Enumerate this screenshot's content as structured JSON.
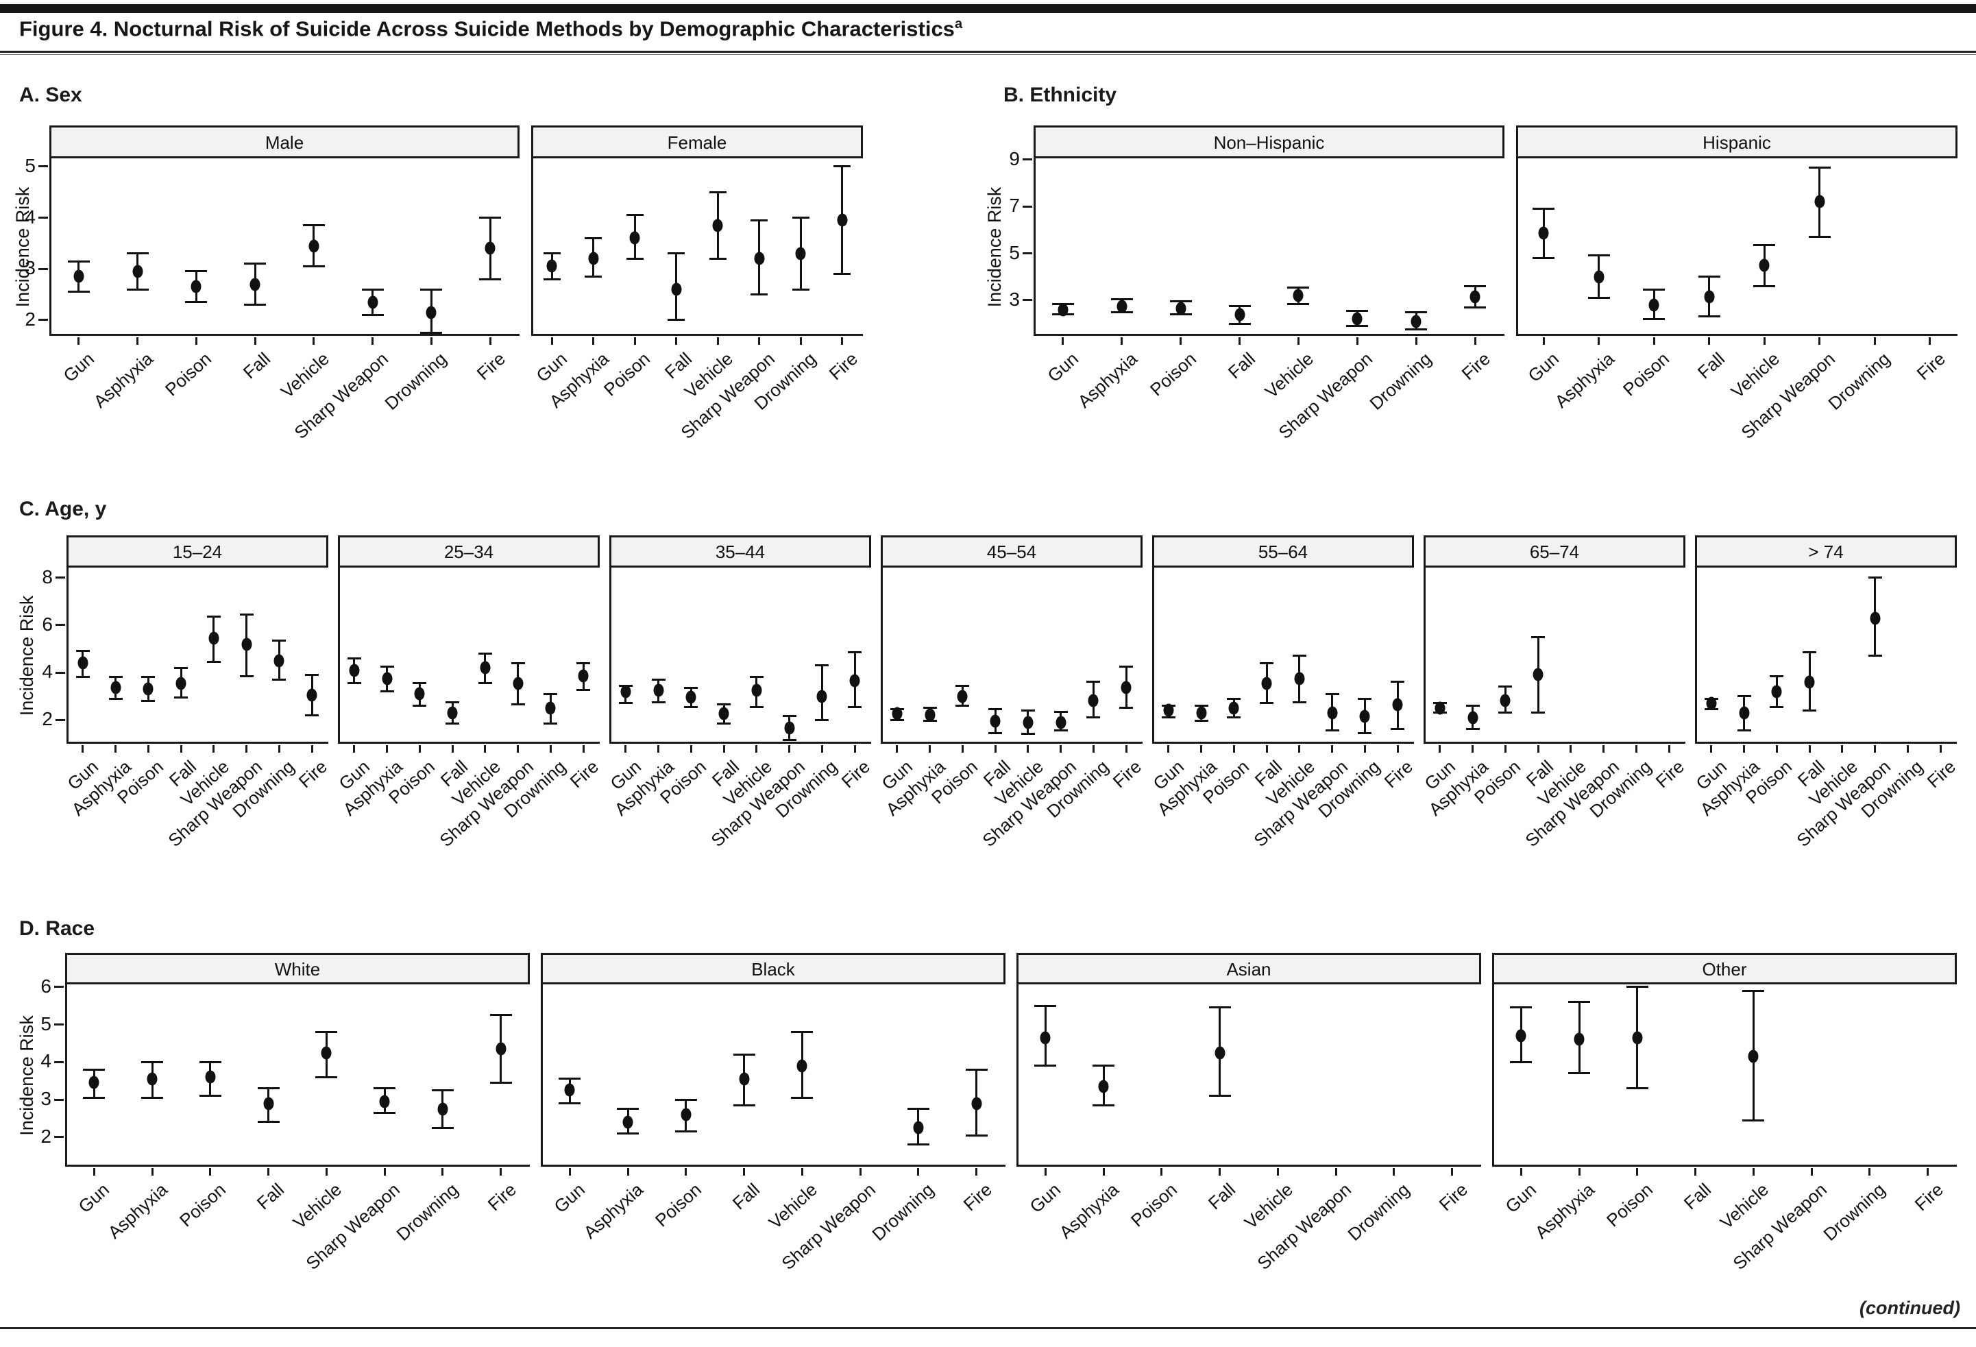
{
  "header": {
    "title": "Figure 4. Nocturnal Risk of Suicide Across Suicide Methods by Demographic Characteristics",
    "title_sup": "a"
  },
  "footer": {
    "continued": "(continued)"
  },
  "colors": {
    "point": "#111111",
    "panel_header_fill": "#f2f2f2",
    "border": "#1a1a1a"
  },
  "chart_data": {
    "type": "scatter",
    "point_style": "dot-with-95ci-error-bars",
    "ylabel": "Incidence Risk",
    "categories": [
      "Gun",
      "Asphyxia",
      "Poison",
      "Fall",
      "Vehicle",
      "Sharp Weapon",
      "Drowning",
      "Fire"
    ],
    "rows": [
      {
        "id": "A",
        "label": "A. Sex",
        "ylabel": "Incidence Risk",
        "yticks": [
          5,
          4,
          3,
          2
        ],
        "ylim_top": 5.16,
        "ylim_bottom": 1.69,
        "panels": [
          {
            "title": "Male",
            "values": [
              2.85,
              2.95,
              2.65,
              2.7,
              3.45,
              2.35,
              2.15,
              3.4
            ],
            "ci": [
              [
                2.55,
                3.15
              ],
              [
                2.6,
                3.3
              ],
              [
                2.35,
                2.95
              ],
              [
                2.3,
                3.1
              ],
              [
                3.05,
                3.85
              ],
              [
                2.1,
                2.6
              ],
              [
                1.75,
                2.6
              ],
              [
                2.8,
                4.0
              ]
            ]
          },
          {
            "title": "Female",
            "values": [
              3.05,
              3.2,
              3.6,
              2.6,
              3.85,
              3.2,
              3.3,
              3.95
            ],
            "ci": [
              [
                2.8,
                3.3
              ],
              [
                2.85,
                3.6
              ],
              [
                3.2,
                4.05
              ],
              [
                2.0,
                3.3
              ],
              [
                3.2,
                4.5
              ],
              [
                2.5,
                3.95
              ],
              [
                2.6,
                4.0
              ],
              [
                2.9,
                5.0
              ]
            ]
          }
        ]
      },
      {
        "id": "B",
        "label": "B. Ethnicity",
        "ylabel": "Incidence Risk",
        "yticks": [
          9,
          7,
          5,
          3
        ],
        "ylim_top": 9.05,
        "ylim_bottom": 1.48,
        "panels": [
          {
            "title": "Non–Hispanic",
            "values": [
              2.6,
              2.75,
              2.65,
              2.4,
              3.2,
              2.2,
              2.1,
              3.15
            ],
            "ci": [
              [
                2.4,
                2.85
              ],
              [
                2.5,
                3.05
              ],
              [
                2.4,
                2.95
              ],
              [
                2.0,
                2.75
              ],
              [
                2.85,
                3.55
              ],
              [
                1.9,
                2.55
              ],
              [
                1.75,
                2.5
              ],
              [
                2.7,
                3.6
              ]
            ]
          },
          {
            "title": "Hispanic",
            "values": [
              5.85,
              4.0,
              2.8,
              3.15,
              4.5,
              7.2,
              null,
              null
            ],
            "ci": [
              [
                4.8,
                6.9
              ],
              [
                3.1,
                4.9
              ],
              [
                2.2,
                3.45
              ],
              [
                2.3,
                4.0
              ],
              [
                3.6,
                5.35
              ],
              [
                5.7,
                8.65
              ],
              null,
              null
            ]
          }
        ]
      },
      {
        "id": "C",
        "label": "C. Age, y",
        "ylabel": "Incidence Risk",
        "yticks": [
          8,
          6,
          4,
          2
        ],
        "ylim_top": 8.43,
        "ylim_bottom": 0.99,
        "panels": [
          {
            "title": "15–24",
            "values": [
              4.4,
              3.35,
              3.3,
              3.55,
              5.45,
              5.2,
              4.5,
              3.05
            ],
            "ci": [
              [
                3.8,
                4.9
              ],
              [
                2.9,
                3.8
              ],
              [
                2.8,
                3.8
              ],
              [
                2.95,
                4.2
              ],
              [
                4.45,
                6.35
              ],
              [
                3.85,
                6.45
              ],
              [
                3.7,
                5.35
              ],
              [
                2.2,
                3.9
              ]
            ]
          },
          {
            "title": "25–34",
            "values": [
              4.1,
              3.75,
              3.1,
              2.3,
              4.2,
              3.55,
              2.5,
              3.85
            ],
            "ci": [
              [
                3.55,
                4.6
              ],
              [
                3.2,
                4.25
              ],
              [
                2.6,
                3.55
              ],
              [
                1.85,
                2.75
              ],
              [
                3.55,
                4.8
              ],
              [
                2.65,
                4.4
              ],
              [
                1.85,
                3.1
              ],
              [
                3.25,
                4.4
              ]
            ]
          },
          {
            "title": "35–44",
            "values": [
              3.2,
              3.25,
              2.95,
              2.25,
              3.25,
              1.65,
              3.0,
              3.65
            ],
            "ci": [
              [
                2.7,
                3.45
              ],
              [
                2.75,
                3.7
              ],
              [
                2.55,
                3.35
              ],
              [
                1.85,
                2.65
              ],
              [
                2.55,
                3.8
              ],
              [
                1.15,
                2.15
              ],
              [
                2.0,
                4.3
              ],
              [
                2.55,
                4.85
              ]
            ]
          },
          {
            "title": "45–54",
            "values": [
              2.25,
              2.2,
              3.0,
              1.95,
              1.9,
              1.9,
              2.8,
              3.35
            ],
            "ci": [
              [
                2.0,
                2.45
              ],
              [
                1.95,
                2.5
              ],
              [
                2.6,
                3.45
              ],
              [
                1.45,
                2.45
              ],
              [
                1.4,
                2.4
              ],
              [
                1.55,
                2.35
              ],
              [
                2.1,
                3.6
              ],
              [
                2.5,
                4.25
              ]
            ]
          },
          {
            "title": "55–64",
            "values": [
              2.4,
              2.3,
              2.5,
              3.55,
              3.75,
              2.3,
              2.15,
              2.65
            ],
            "ci": [
              [
                2.1,
                2.6
              ],
              [
                1.95,
                2.6
              ],
              [
                2.1,
                2.9
              ],
              [
                2.7,
                4.4
              ],
              [
                2.75,
                4.7
              ],
              [
                1.55,
                3.1
              ],
              [
                1.45,
                2.9
              ],
              [
                1.6,
                3.6
              ]
            ]
          },
          {
            "title": "65–74",
            "values": [
              2.5,
              2.1,
              2.8,
              3.9,
              null,
              null,
              null,
              null
            ],
            "ci": [
              [
                2.3,
                2.7
              ],
              [
                1.6,
                2.6
              ],
              [
                2.3,
                3.4
              ],
              [
                2.3,
                5.5
              ],
              null,
              null,
              null,
              null
            ]
          },
          {
            "title": "> 74",
            "values": [
              2.7,
              2.3,
              3.2,
              3.6,
              null,
              6.3,
              null,
              null
            ],
            "ci": [
              [
                2.45,
                2.9
              ],
              [
                1.55,
                3.0
              ],
              [
                2.55,
                3.85
              ],
              [
                2.4,
                4.85
              ],
              null,
              [
                4.7,
                8.0
              ],
              null,
              null
            ]
          }
        ]
      },
      {
        "id": "D",
        "label": "D. Race",
        "ylabel": "Incidence Risk",
        "yticks": [
          6,
          5,
          4,
          3,
          2
        ],
        "ylim_top": 6.07,
        "ylim_bottom": 1.21,
        "panels": [
          {
            "title": "White",
            "values": [
              3.45,
              3.55,
              3.6,
              2.9,
              4.25,
              2.95,
              2.75,
              4.35
            ],
            "ci": [
              [
                3.05,
                3.8
              ],
              [
                3.05,
                4.0
              ],
              [
                3.1,
                4.0
              ],
              [
                2.4,
                3.3
              ],
              [
                3.6,
                4.8
              ],
              [
                2.65,
                3.3
              ],
              [
                2.25,
                3.25
              ],
              [
                3.45,
                5.25
              ]
            ]
          },
          {
            "title": "Black",
            "values": [
              3.25,
              2.4,
              2.6,
              3.55,
              3.9,
              null,
              2.25,
              2.9
            ],
            "ci": [
              [
                2.9,
                3.55
              ],
              [
                2.1,
                2.75
              ],
              [
                2.15,
                3.0
              ],
              [
                2.85,
                4.2
              ],
              [
                3.05,
                4.8
              ],
              null,
              [
                1.8,
                2.75
              ],
              [
                2.05,
                3.8
              ]
            ]
          },
          {
            "title": "Asian",
            "values": [
              4.65,
              3.35,
              null,
              4.25,
              null,
              null,
              null,
              null
            ],
            "ci": [
              [
                3.9,
                5.5
              ],
              [
                2.85,
                3.9
              ],
              null,
              [
                3.1,
                5.45
              ],
              null,
              null,
              null,
              null
            ]
          },
          {
            "title": "Other",
            "values": [
              4.7,
              4.6,
              4.65,
              null,
              4.15,
              null,
              null,
              null
            ],
            "ci": [
              [
                4.0,
                5.45
              ],
              [
                3.7,
                5.6
              ],
              [
                3.3,
                6.0
              ],
              null,
              [
                2.45,
                5.9
              ],
              null,
              null,
              null
            ]
          }
        ]
      }
    ]
  }
}
